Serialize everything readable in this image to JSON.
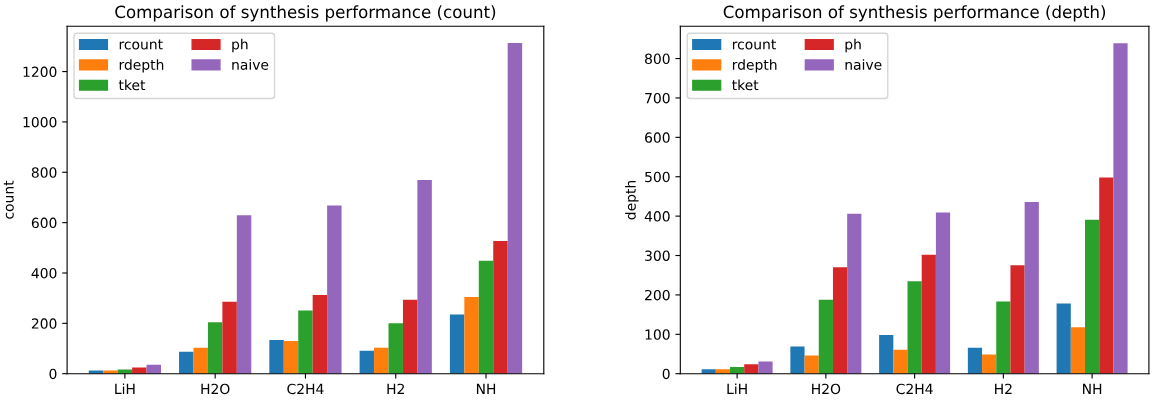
{
  "chart_data": [
    {
      "type": "bar",
      "title": "Comparison of synthesis performance (count)",
      "ylabel": "count",
      "categories": [
        "LiH",
        "H2O",
        "C2H4",
        "H2",
        "NH"
      ],
      "ylim": [
        0,
        1380
      ],
      "yticks": [
        0,
        200,
        400,
        600,
        800,
        1000,
        1200
      ],
      "legend": "top left",
      "grid": false,
      "series": [
        {
          "name": "rcount",
          "color": "#1f77b4",
          "values": [
            13,
            87,
            134,
            91,
            235
          ]
        },
        {
          "name": "rdepth",
          "color": "#ff7f0e",
          "values": [
            13,
            103,
            130,
            103,
            305
          ]
        },
        {
          "name": "tket",
          "color": "#2ca02c",
          "values": [
            17,
            204,
            251,
            200,
            449
          ]
        },
        {
          "name": "ph",
          "color": "#d62728",
          "values": [
            25,
            286,
            313,
            294,
            527
          ]
        },
        {
          "name": "naive",
          "color": "#9467bd",
          "values": [
            36,
            629,
            668,
            769,
            1314
          ]
        }
      ]
    },
    {
      "type": "bar",
      "title": "Comparison of synthesis performance (depth)",
      "ylabel": "depth",
      "categories": [
        "LiH",
        "H2O",
        "C2H4",
        "H2",
        "NH"
      ],
      "ylim": [
        0,
        882
      ],
      "yticks": [
        0,
        100,
        200,
        300,
        400,
        500,
        600,
        700,
        800
      ],
      "legend": "top left",
      "grid": false,
      "series": [
        {
          "name": "rcount",
          "color": "#1f77b4",
          "values": [
            11,
            69,
            98,
            66,
            178
          ]
        },
        {
          "name": "rdepth",
          "color": "#ff7f0e",
          "values": [
            11,
            46,
            61,
            49,
            118
          ]
        },
        {
          "name": "tket",
          "color": "#2ca02c",
          "values": [
            17,
            188,
            235,
            183,
            391
          ]
        },
        {
          "name": "ph",
          "color": "#d62728",
          "values": [
            24,
            270,
            302,
            275,
            498
          ]
        },
        {
          "name": "naive",
          "color": "#9467bd",
          "values": [
            31,
            406,
            409,
            436,
            839
          ]
        }
      ]
    }
  ]
}
